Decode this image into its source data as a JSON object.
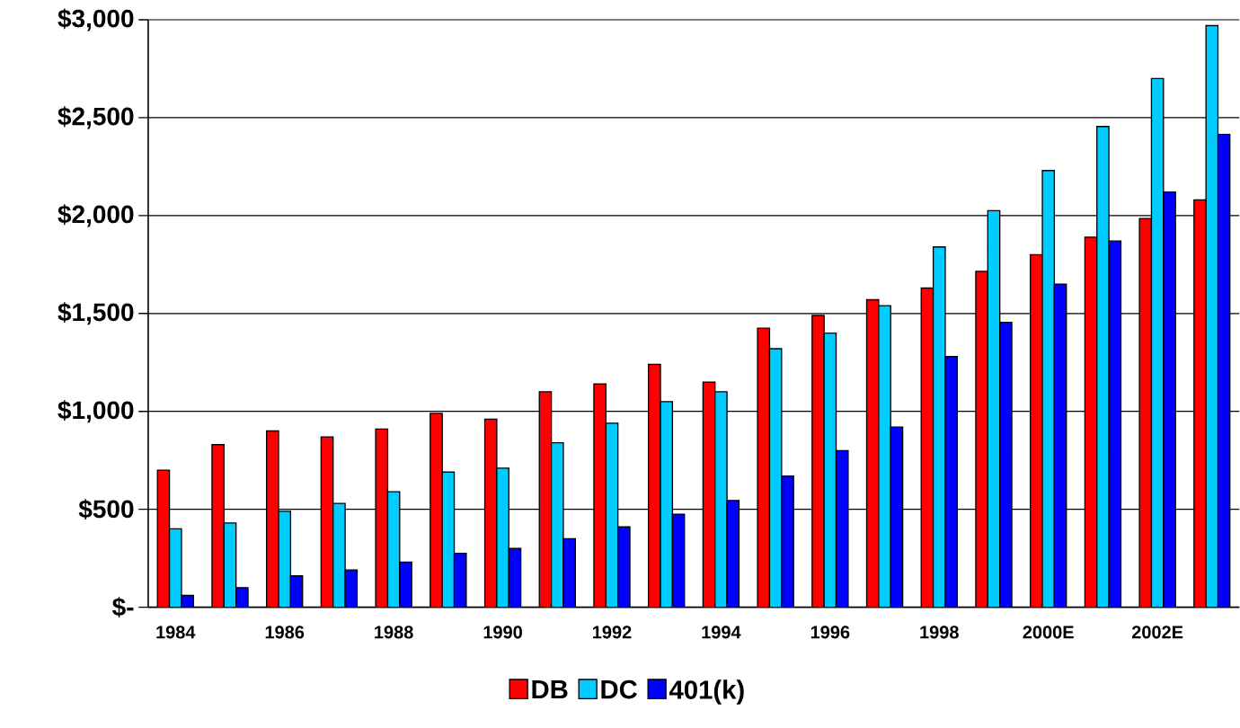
{
  "chart_data": {
    "type": "bar",
    "categories": [
      "1984",
      null,
      "1986",
      null,
      "1988",
      null,
      "1990",
      null,
      "1992",
      null,
      "1994",
      null,
      "1996",
      null,
      "1998",
      null,
      "2000E",
      null,
      "2002E",
      null
    ],
    "series": [
      {
        "name": "DB",
        "color": "#ff0000",
        "values": [
          700,
          830,
          900,
          870,
          910,
          990,
          960,
          1100,
          1140,
          1240,
          1150,
          1425,
          1490,
          1570,
          1630,
          1715,
          1800,
          1890,
          1985,
          2080
        ]
      },
      {
        "name": "DC",
        "color": "#00ccff",
        "values": [
          400,
          430,
          490,
          530,
          590,
          690,
          710,
          840,
          940,
          1050,
          1100,
          1320,
          1400,
          1540,
          1840,
          2025,
          2230,
          2455,
          2700,
          2970
        ]
      },
      {
        "name": "401(k)",
        "color": "#0000ff",
        "values": [
          60,
          100,
          160,
          190,
          230,
          275,
          300,
          350,
          410,
          475,
          545,
          670,
          800,
          920,
          1280,
          1455,
          1650,
          1870,
          2120,
          2415
        ]
      }
    ],
    "ylim": [
      0,
      3000
    ],
    "yticks": [
      {
        "value": 0,
        "label": "$-"
      },
      {
        "value": 500,
        "label": "$500"
      },
      {
        "value": 1000,
        "label": "$1,000"
      },
      {
        "value": 1500,
        "label": "$1,500"
      },
      {
        "value": 2000,
        "label": "$2,000"
      },
      {
        "value": 2500,
        "label": "$2,500"
      },
      {
        "value": 3000,
        "label": "$3,000"
      }
    ],
    "grid": "y",
    "legend": "bottom"
  }
}
